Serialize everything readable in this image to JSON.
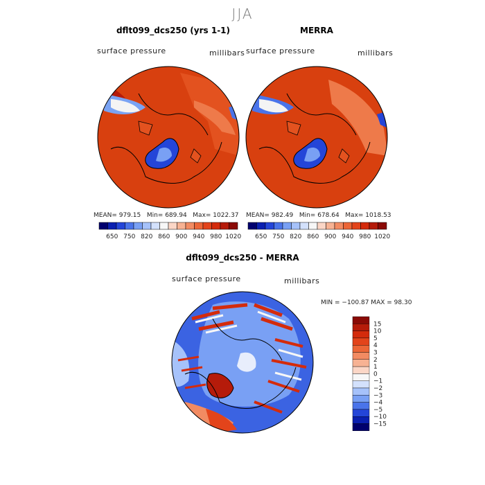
{
  "title": "JJA",
  "panels": [
    {
      "title": "dflt099_dcs250 (yrs 1-1)",
      "variable": "surface pressure",
      "units": "millibars",
      "mean": "MEAN= 979.15",
      "min": "Min= 689.94",
      "max": "Max= 1022.37"
    },
    {
      "title": "MERRA",
      "variable": "surface pressure",
      "units": "millibars",
      "mean": "MEAN= 982.49",
      "min": "Min= 678.64",
      "max": "Max= 1018.53"
    },
    {
      "title": "dflt099_dcs250 - MERRA",
      "variable": "surface pressure",
      "units": "millibars",
      "minmax": "MIN = −100.87 MAX =  98.30"
    }
  ],
  "chart_data": [
    {
      "type": "heatmap",
      "title": "dflt099_dcs250 (yrs 1-1)",
      "projection": "polar stereographic (north)",
      "legend_levels": [
        "650",
        "750",
        "820",
        "860",
        "900",
        "940",
        "980",
        "1020"
      ],
      "colors": [
        "#00006e",
        "#0a1fb0",
        "#2445d8",
        "#4a74ea",
        "#79a0f4",
        "#a6c2fa",
        "#d3e1fc",
        "#f7f7f7",
        "#fbd6c6",
        "#f7b293",
        "#f28b62",
        "#ec6637",
        "#e3441b",
        "#d42b0c",
        "#b51b0a",
        "#8a0a06"
      ]
    },
    {
      "type": "heatmap",
      "title": "MERRA",
      "projection": "polar stereographic (north)",
      "legend_levels": [
        "650",
        "750",
        "820",
        "860",
        "900",
        "940",
        "980",
        "1020"
      ],
      "colors": [
        "#00006e",
        "#0a1fb0",
        "#2445d8",
        "#4a74ea",
        "#79a0f4",
        "#a6c2fa",
        "#d3e1fc",
        "#f7f7f7",
        "#fbd6c6",
        "#f7b293",
        "#f28b62",
        "#ec6637",
        "#e3441b",
        "#d42b0c",
        "#b51b0a",
        "#8a0a06"
      ]
    },
    {
      "type": "heatmap",
      "title": "dflt099_dcs250 - MERRA",
      "projection": "polar stereographic (north)",
      "legend_levels": [
        "15",
        "10",
        "5",
        "4",
        "3",
        "2",
        "1",
        "0",
        "−1",
        "−2",
        "−3",
        "−4",
        "−5",
        "−10",
        "−15"
      ],
      "colors": [
        "#8a0a06",
        "#b51b0a",
        "#d42b0c",
        "#e3441b",
        "#ec6637",
        "#f28b62",
        "#f7b293",
        "#fbd6c6",
        "#f7f7f7",
        "#d3e1fc",
        "#a6c2fa",
        "#79a0f4",
        "#4a74ea",
        "#2445d8",
        "#0a1fb0",
        "#00006e"
      ]
    }
  ]
}
